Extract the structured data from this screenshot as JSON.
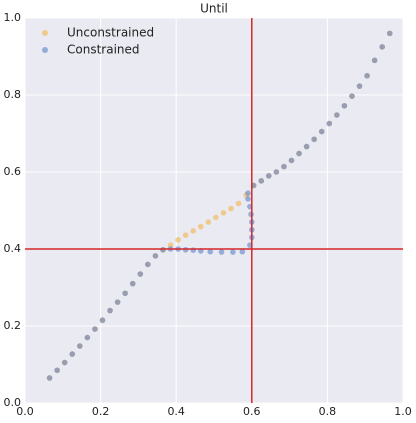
{
  "chart_data": {
    "type": "scatter",
    "title": "Until",
    "xlim": [
      0,
      1
    ],
    "ylim": [
      0,
      1
    ],
    "xticks": [
      {
        "value": 0,
        "label": "0.0"
      },
      0.2,
      0.4,
      0.6,
      0.8,
      {
        "value": 1,
        "label": "1.0"
      }
    ],
    "yticks": [
      {
        "value": 0,
        "label": "0.0"
      },
      0.2,
      0.4,
      0.6,
      0.8,
      {
        "value": 1,
        "label": "1.0"
      }
    ],
    "grid": true,
    "legend": "upper left",
    "vlines": [
      0.6
    ],
    "hlines": [
      0.4
    ],
    "line_color": "#d62728",
    "series": [
      {
        "name": "Unconstrained",
        "color": "#f2b447",
        "x": [
          0.065,
          0.085,
          0.105,
          0.125,
          0.145,
          0.165,
          0.185,
          0.205,
          0.225,
          0.245,
          0.265,
          0.285,
          0.305,
          0.325,
          0.345,
          0.365,
          0.385,
          0.405,
          0.425,
          0.445,
          0.465,
          0.485,
          0.505,
          0.525,
          0.545,
          0.565,
          0.585,
          0.605,
          0.625,
          0.645,
          0.665,
          0.685,
          0.705,
          0.725,
          0.745,
          0.765,
          0.785,
          0.805,
          0.825,
          0.845,
          0.865,
          0.885,
          0.905,
          0.925,
          0.945,
          0.965
        ],
        "y": [
          0.065,
          0.085,
          0.105,
          0.127,
          0.148,
          0.17,
          0.192,
          0.215,
          0.24,
          0.262,
          0.285,
          0.31,
          0.335,
          0.36,
          0.382,
          0.398,
          0.41,
          0.424,
          0.436,
          0.447,
          0.458,
          0.47,
          0.482,
          0.494,
          0.505,
          0.518,
          0.54,
          0.565,
          0.577,
          0.59,
          0.6,
          0.614,
          0.63,
          0.648,
          0.666,
          0.685,
          0.705,
          0.726,
          0.748,
          0.772,
          0.797,
          0.823,
          0.85,
          0.89,
          0.925,
          0.96
        ]
      },
      {
        "name": "Constrained",
        "color": "#5b80c8",
        "x": [
          0.065,
          0.085,
          0.105,
          0.125,
          0.145,
          0.165,
          0.185,
          0.205,
          0.225,
          0.245,
          0.265,
          0.285,
          0.305,
          0.325,
          0.345,
          0.365,
          0.385,
          0.405,
          0.425,
          0.445,
          0.465,
          0.49,
          0.52,
          0.55,
          0.575,
          0.595,
          0.6,
          0.6,
          0.6,
          0.598,
          0.595,
          0.59,
          0.59,
          0.605,
          0.625,
          0.645,
          0.665,
          0.685,
          0.705,
          0.725,
          0.745,
          0.765,
          0.785,
          0.805,
          0.825,
          0.845,
          0.865,
          0.885,
          0.905,
          0.925,
          0.945,
          0.965
        ],
        "y": [
          0.065,
          0.085,
          0.105,
          0.127,
          0.148,
          0.17,
          0.192,
          0.215,
          0.24,
          0.262,
          0.285,
          0.31,
          0.335,
          0.36,
          0.382,
          0.398,
          0.4,
          0.4,
          0.398,
          0.397,
          0.395,
          0.393,
          0.392,
          0.392,
          0.393,
          0.41,
          0.43,
          0.45,
          0.47,
          0.49,
          0.51,
          0.53,
          0.545,
          0.565,
          0.577,
          0.59,
          0.6,
          0.614,
          0.63,
          0.648,
          0.666,
          0.685,
          0.705,
          0.726,
          0.748,
          0.772,
          0.797,
          0.823,
          0.85,
          0.89,
          0.925,
          0.96
        ]
      }
    ]
  }
}
